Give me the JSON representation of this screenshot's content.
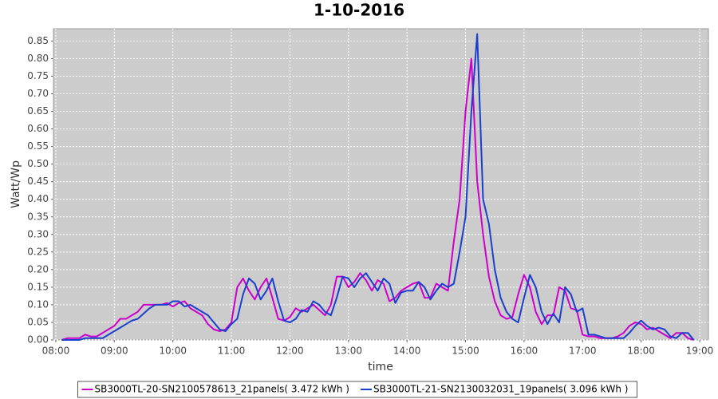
{
  "chart_data": {
    "type": "line",
    "title": "1-10-2016",
    "x_label": "time",
    "y_label": "Watt/Wp",
    "xlim": [
      7.96,
      19.15
    ],
    "ylim": [
      0,
      0.885
    ],
    "grid": true,
    "legend": "bottom",
    "xticks": [
      {
        "value": 8,
        "label": "08:00"
      },
      {
        "value": 9,
        "label": "09:00"
      },
      {
        "value": 10,
        "label": "10:00"
      },
      {
        "value": 11,
        "label": "11:00"
      },
      {
        "value": 12,
        "label": "12:00"
      },
      {
        "value": 13,
        "label": "13:00"
      },
      {
        "value": 14,
        "label": "14:00"
      },
      {
        "value": 15,
        "label": "15:00"
      },
      {
        "value": 16,
        "label": "16:00"
      },
      {
        "value": 17,
        "label": "17:00"
      },
      {
        "value": 18,
        "label": "18:00"
      },
      {
        "value": 19,
        "label": "19:00"
      }
    ],
    "yticks": [
      {
        "value": 0,
        "label": "0.00"
      },
      {
        "value": 0.05,
        "label": "0.05"
      },
      {
        "value": 0.1,
        "label": "0.10"
      },
      {
        "value": 0.15,
        "label": "0.15"
      },
      {
        "value": 0.2,
        "label": "0.20"
      },
      {
        "value": 0.25,
        "label": "0.25"
      },
      {
        "value": 0.3,
        "label": "0.30"
      },
      {
        "value": 0.35,
        "label": "0.35"
      },
      {
        "value": 0.4,
        "label": "0.40"
      },
      {
        "value": 0.45,
        "label": "0.45"
      },
      {
        "value": 0.5,
        "label": "0.50"
      },
      {
        "value": 0.55,
        "label": "0.55"
      },
      {
        "value": 0.6,
        "label": "0.60"
      },
      {
        "value": 0.65,
        "label": "0.65"
      },
      {
        "value": 0.7,
        "label": "0.70"
      },
      {
        "value": 0.75,
        "label": "0.75"
      },
      {
        "value": 0.8,
        "label": "0.80"
      },
      {
        "value": 0.85,
        "label": "0.85"
      }
    ],
    "x": [
      8.1,
      8.2,
      8.3,
      8.4,
      8.5,
      8.6,
      8.7,
      8.8,
      8.9,
      9.0,
      9.1,
      9.2,
      9.3,
      9.4,
      9.5,
      9.6,
      9.7,
      9.8,
      9.9,
      10.0,
      10.1,
      10.2,
      10.3,
      10.4,
      10.5,
      10.6,
      10.7,
      10.8,
      10.9,
      11.0,
      11.1,
      11.2,
      11.3,
      11.4,
      11.5,
      11.6,
      11.7,
      11.8,
      11.9,
      12.0,
      12.1,
      12.2,
      12.3,
      12.4,
      12.5,
      12.6,
      12.7,
      12.8,
      12.9,
      13.0,
      13.1,
      13.2,
      13.3,
      13.4,
      13.5,
      13.6,
      13.7,
      13.8,
      13.9,
      14.0,
      14.1,
      14.2,
      14.3,
      14.4,
      14.5,
      14.6,
      14.7,
      14.8,
      14.9,
      15.0,
      15.1,
      15.2,
      15.3,
      15.4,
      15.5,
      15.6,
      15.7,
      15.8,
      15.9,
      16.0,
      16.1,
      16.2,
      16.3,
      16.4,
      16.5,
      16.6,
      16.7,
      16.8,
      16.9,
      17.0,
      17.1,
      17.2,
      17.3,
      17.4,
      17.5,
      17.6,
      17.7,
      17.8,
      17.9,
      18.0,
      18.1,
      18.2,
      18.3,
      18.4,
      18.5,
      18.6,
      18.7,
      18.8,
      18.9
    ],
    "series": [
      {
        "name": "SB3000TL-20-SN2100578613_21panels( 3.472 kWh )",
        "color": "#cc00cc",
        "values": [
          0,
          0.005,
          0.005,
          0.005,
          0.015,
          0.01,
          0.01,
          0.02,
          0.03,
          0.04,
          0.06,
          0.06,
          0.07,
          0.08,
          0.1,
          0.1,
          0.1,
          0.1,
          0.105,
          0.095,
          0.105,
          0.11,
          0.09,
          0.08,
          0.07,
          0.045,
          0.03,
          0.025,
          0.03,
          0.05,
          0.15,
          0.175,
          0.14,
          0.115,
          0.15,
          0.175,
          0.12,
          0.06,
          0.055,
          0.065,
          0.09,
          0.08,
          0.09,
          0.1,
          0.085,
          0.07,
          0.1,
          0.18,
          0.18,
          0.15,
          0.165,
          0.19,
          0.17,
          0.14,
          0.17,
          0.16,
          0.11,
          0.12,
          0.14,
          0.15,
          0.16,
          0.165,
          0.12,
          0.12,
          0.16,
          0.15,
          0.14,
          0.28,
          0.4,
          0.65,
          0.8,
          0.45,
          0.3,
          0.18,
          0.11,
          0.07,
          0.06,
          0.065,
          0.13,
          0.185,
          0.15,
          0.08,
          0.045,
          0.07,
          0.07,
          0.15,
          0.14,
          0.09,
          0.085,
          0.015,
          0.01,
          0.01,
          0.005,
          0.005,
          0.005,
          0.01,
          0.02,
          0.04,
          0.05,
          0.045,
          0.03,
          0.035,
          0.025,
          0.015,
          0.005,
          0.02,
          0.02,
          0.005,
          0
        ]
      },
      {
        "name": "SB3000TL-21-SN2130032031_19panels( 3.096 kWh )",
        "color": "#1a3fcc",
        "values": [
          0,
          0,
          0,
          0,
          0.005,
          0.005,
          0.005,
          0.005,
          0.015,
          0.025,
          0.035,
          0.045,
          0.055,
          0.06,
          0.075,
          0.09,
          0.1,
          0.1,
          0.1,
          0.11,
          0.11,
          0.095,
          0.1,
          0.09,
          0.08,
          0.07,
          0.05,
          0.03,
          0.025,
          0.045,
          0.06,
          0.13,
          0.175,
          0.16,
          0.115,
          0.14,
          0.175,
          0.11,
          0.055,
          0.05,
          0.06,
          0.085,
          0.08,
          0.11,
          0.1,
          0.08,
          0.07,
          0.12,
          0.18,
          0.175,
          0.15,
          0.175,
          0.19,
          0.165,
          0.14,
          0.175,
          0.16,
          0.105,
          0.135,
          0.14,
          0.14,
          0.165,
          0.15,
          0.115,
          0.14,
          0.16,
          0.15,
          0.16,
          0.25,
          0.35,
          0.65,
          0.87,
          0.4,
          0.33,
          0.2,
          0.12,
          0.08,
          0.06,
          0.05,
          0.12,
          0.185,
          0.15,
          0.08,
          0.045,
          0.075,
          0.05,
          0.15,
          0.13,
          0.08,
          0.09,
          0.015,
          0.015,
          0.01,
          0.005,
          0.005,
          0.005,
          0.005,
          0.02,
          0.04,
          0.055,
          0.04,
          0.03,
          0.035,
          0.03,
          0.01,
          0.005,
          0.02,
          0.02,
          0
        ]
      }
    ]
  }
}
